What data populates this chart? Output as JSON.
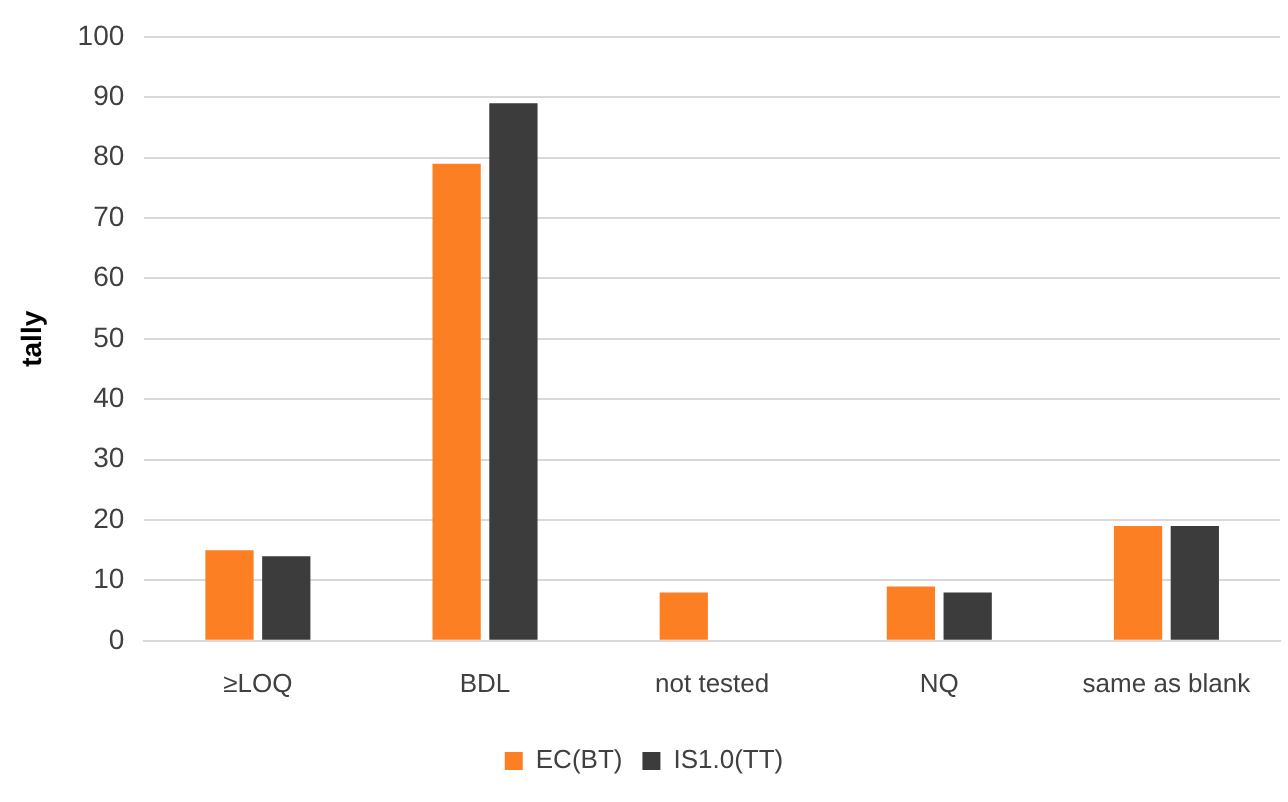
{
  "chart_data": {
    "type": "bar",
    "ylabel": "tally",
    "categories": [
      "≥LOQ",
      "BDL",
      "not tested",
      "NQ",
      "same as blank"
    ],
    "series": [
      {
        "name": "EC(BT)",
        "color": "#fd7f23",
        "values": [
          15,
          79,
          8,
          9,
          19
        ]
      },
      {
        "name": "IS1.0(TT)",
        "color": "#3c3c3c",
        "values": [
          14,
          89,
          0,
          8,
          19
        ]
      }
    ],
    "ylim": [
      0,
      100
    ],
    "yticks": [
      0,
      10,
      20,
      30,
      40,
      50,
      60,
      70,
      80,
      90,
      100
    ],
    "grid": "y",
    "legend": "bottom"
  }
}
